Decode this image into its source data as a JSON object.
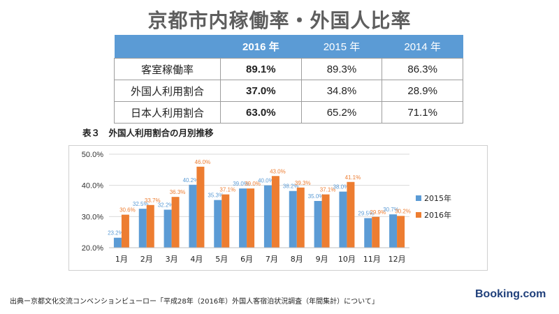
{
  "title": "京都市内稼働率・外国人比率",
  "summary_table": {
    "headers": [
      "",
      "2016 年",
      "2015 年",
      "2014 年"
    ],
    "rows": [
      {
        "label": "客室稼働率",
        "values": [
          "89.1%",
          "89.3%",
          "86.3%"
        ]
      },
      {
        "label": "外国人利用割合",
        "values": [
          "37.0%",
          "34.8%",
          "28.9%"
        ]
      },
      {
        "label": "日本人利用割合",
        "values": [
          "63.0%",
          "65.2%",
          "71.1%"
        ]
      }
    ]
  },
  "chart_caption": "表３　外国人利用割合の月別推移",
  "colors": {
    "series_2015": "#5b9bd5",
    "series_2016": "#ed7d31",
    "header_bg": "#5b9bd5"
  },
  "chart_data": {
    "type": "bar",
    "title": "",
    "xlabel": "",
    "ylabel": "",
    "categories": [
      "1月",
      "2月",
      "3月",
      "4月",
      "5月",
      "6月",
      "7月",
      "8月",
      "9月",
      "10月",
      "11月",
      "12月"
    ],
    "series": [
      {
        "name": "2015年",
        "values": [
          23.2,
          32.5,
          32.2,
          40.2,
          35.3,
          39.0,
          40.0,
          38.2,
          35.0,
          38.0,
          29.5,
          30.7
        ],
        "labels": [
          "23.2%",
          "32.5%",
          "32.2%",
          "40.2%",
          "35.3%",
          "39.0%",
          "40.0%",
          "38.2%",
          "35.0%",
          "38.0%",
          "29.5%",
          "30.7%"
        ]
      },
      {
        "name": "2016年",
        "values": [
          30.6,
          33.7,
          36.3,
          46.0,
          37.1,
          39.0,
          43.0,
          39.3,
          37.1,
          41.1,
          29.9,
          30.2
        ],
        "labels": [
          "30.6%",
          "33.7%",
          "36.3%",
          "46.0%",
          "37.1%",
          "39.0%",
          "43.0%",
          "39.3%",
          "37.1%",
          "41.1%",
          "29.9%",
          "30.2%"
        ]
      }
    ],
    "ylim": [
      20,
      50
    ],
    "yticks": [
      "20.0%",
      "30.0%",
      "40.0%",
      "50.0%"
    ],
    "ytick_values": [
      20,
      30,
      40,
      50
    ],
    "grid": true,
    "legend_position": "right"
  },
  "footer": {
    "source": "出典ー京都文化交流コンベンションビューロー「平成28年（2016年）外国人客宿泊状況調査（年間集計）について」",
    "brand": "Booking.com"
  }
}
